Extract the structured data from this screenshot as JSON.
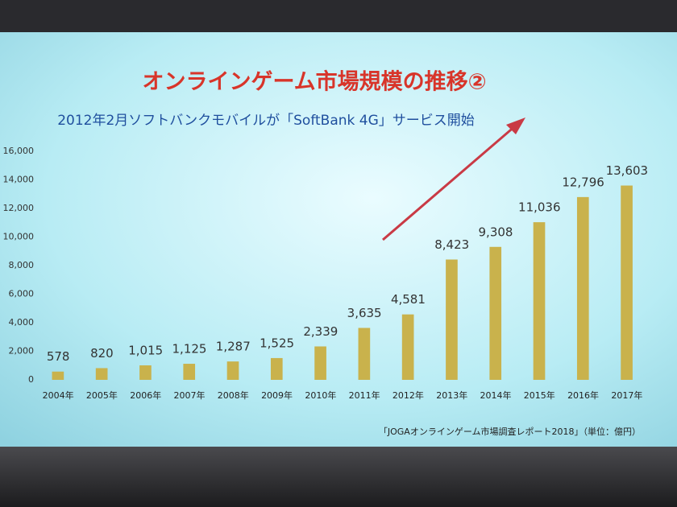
{
  "chart_data": {
    "type": "bar",
    "title": "オンラインゲーム市場規模の推移②",
    "subtitle": "2012年2月ソフトバンクモバイルが「SoftBank 4G」サービス開始",
    "source": "「JOGAオンラインゲーム市場調査レポート2018」（単位：億円）",
    "categories": [
      "2004年",
      "2005年",
      "2006年",
      "2007年",
      "2008年",
      "2009年",
      "2010年",
      "2011年",
      "2012年",
      "2013年",
      "2014年",
      "2015年",
      "2016年",
      "2017年"
    ],
    "values": [
      578,
      820,
      1015,
      1125,
      1287,
      1525,
      2339,
      3635,
      4581,
      8423,
      9308,
      11036,
      12796,
      13603
    ],
    "value_labels": [
      "578",
      "820",
      "1,015",
      "1,125",
      "1,287",
      "1,525",
      "2,339",
      "3,635",
      "4,581",
      "8,423",
      "9,308",
      "11,036",
      "12,796",
      "13,603"
    ],
    "color": "#c9b24c",
    "ylim": [
      0,
      16000
    ],
    "yticks": [
      0,
      {
        "value": 2000,
        "label": "2,000"
      },
      {
        "value": 4000,
        "label": "4,000"
      },
      {
        "value": 6000,
        "label": "6,000"
      },
      {
        "value": 8000,
        "label": "8,000"
      },
      {
        "value": 10000,
        "label": "10,000"
      },
      {
        "value": 12000,
        "label": "12,000"
      },
      {
        "value": 14000,
        "label": "14,000"
      },
      {
        "value": 16000,
        "label": "16,000"
      }
    ],
    "grid": false
  }
}
